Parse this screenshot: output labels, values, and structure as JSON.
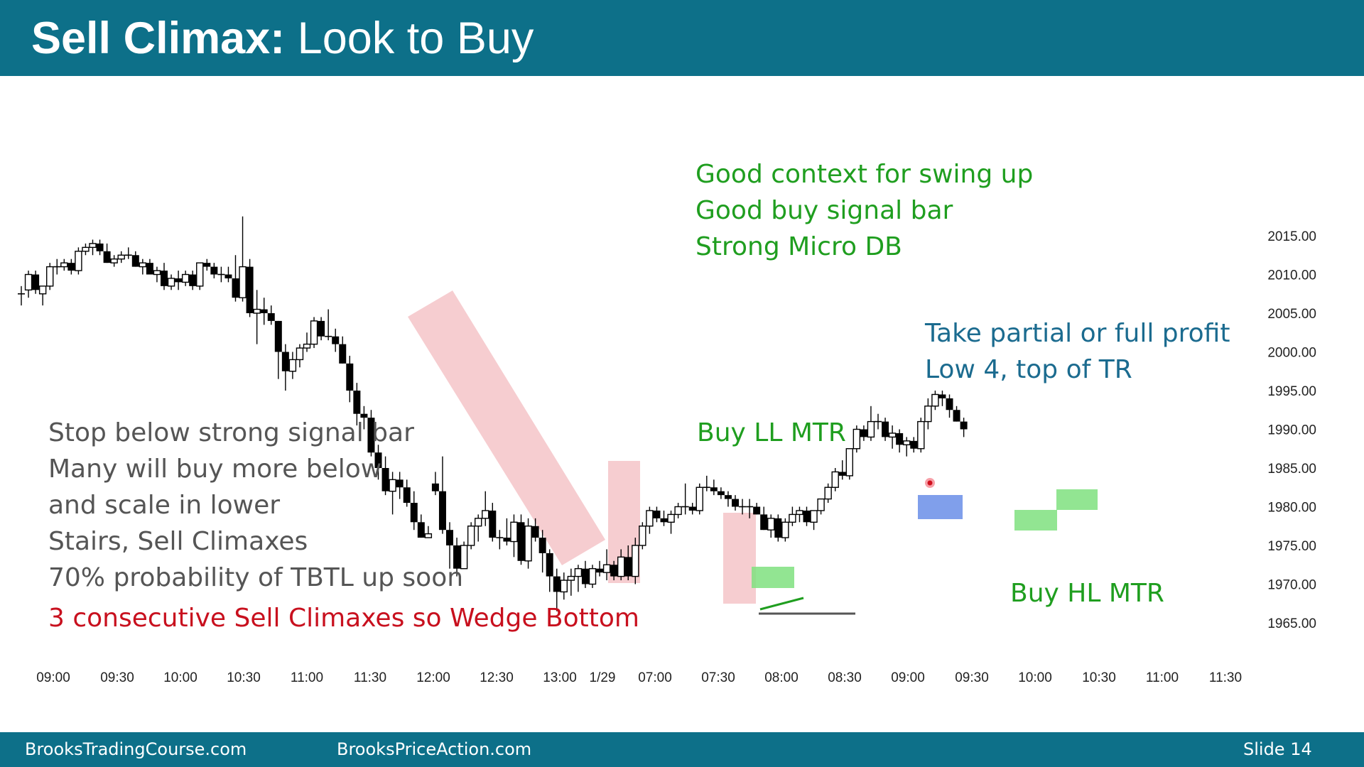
{
  "slide": {
    "title_bold": "Sell Climax:",
    "title_rest": " Look to Buy",
    "footer_left": "BrooksTradingCourse.com",
    "footer_mid": "BrooksPriceAction.com",
    "footer_right": "Slide  14"
  },
  "annotations": {
    "context": [
      "Good context for swing up",
      "Good buy signal bar",
      "Strong Micro DB"
    ],
    "profit": [
      "Take partial or full profit",
      "Low 4, top of TR"
    ],
    "left": [
      "Stop below strong signal bar",
      "Many will buy more below",
      "and scale in lower",
      "Stairs, Sell Climaxes",
      "70% probability of TBTL up soon"
    ],
    "wedge": "3 consecutive Sell Climaxes so Wedge Bottom",
    "buy_ll": "Buy LL MTR",
    "buy_hl": "Buy HL MTR"
  },
  "colors": {
    "header": "#0d7089",
    "bull_body": "#ffffff",
    "bear_body": "#000000",
    "pink_zone": "#f4c4c8",
    "green_zone": "#7fe07f",
    "blue_zone": "#6a8ee8"
  },
  "chart_data": {
    "type": "candlestick",
    "ylim": [
      1962,
      2018
    ],
    "y_ticks": [
      "2015.00",
      "2010.00",
      "2005.00",
      "2000.00",
      "1995.00",
      "1990.00",
      "1985.00",
      "1980.00",
      "1975.00",
      "1970.00",
      "1965.00"
    ],
    "x_ticks": [
      "09:00",
      "09:30",
      "10:00",
      "10:30",
      "11:00",
      "11:30",
      "12:00",
      "12:30",
      "13:00",
      "1/29",
      "07:00",
      "07:30",
      "08:00",
      "08:30",
      "09:00",
      "09:30",
      "10:00",
      "10:30",
      "11:00",
      "11:30"
    ],
    "bars_ohlc": [
      [
        2007.5,
        2008.5,
        2006,
        2007.5
      ],
      [
        2008,
        2010.5,
        2007,
        2010
      ],
      [
        2010,
        2010.5,
        2007.5,
        2008
      ],
      [
        2007.5,
        2008.5,
        2006,
        2008.5
      ],
      [
        2008.5,
        2011.5,
        2008,
        2011
      ],
      [
        2011,
        2012,
        2010,
        2011
      ],
      [
        2011,
        2012,
        2010.5,
        2011.5
      ],
      [
        2011.5,
        2012,
        2010,
        2010.5
      ],
      [
        2010.5,
        2013.5,
        2010,
        2013
      ],
      [
        2013,
        2014,
        2012.5,
        2013.5
      ],
      [
        2013.5,
        2014.5,
        2012.5,
        2014
      ],
      [
        2014,
        2014.5,
        2012.5,
        2013
      ],
      [
        2013,
        2014,
        2011.5,
        2011.5
      ],
      [
        2011.5,
        2012.5,
        2011,
        2012
      ],
      [
        2012,
        2013,
        2011.5,
        2012.5
      ],
      [
        2012.5,
        2013.5,
        2012,
        2012.5
      ],
      [
        2012.5,
        2013,
        2011,
        2011
      ],
      [
        2011,
        2012,
        2010,
        2011.5
      ],
      [
        2011.5,
        2012,
        2010,
        2010
      ],
      [
        2010,
        2011,
        2009,
        2010.5
      ],
      [
        2010.5,
        2011.5,
        2008,
        2008.5
      ],
      [
        2008.5,
        2010,
        2008,
        2009.5
      ],
      [
        2009.5,
        2010.5,
        2008,
        2009
      ],
      [
        2009,
        2010.5,
        2008.5,
        2010
      ],
      [
        2010,
        2010.5,
        2008,
        2008.5
      ],
      [
        2008.5,
        2011.5,
        2008,
        2011.5
      ],
      [
        2011.5,
        2012,
        2010.5,
        2011
      ],
      [
        2011,
        2011.5,
        2009.5,
        2010
      ],
      [
        2010,
        2011,
        2009,
        2010
      ],
      [
        2010,
        2011,
        2009,
        2009.5
      ],
      [
        2009.5,
        2012.5,
        2006.5,
        2007
      ],
      [
        2007,
        2017.5,
        2006.5,
        2011
      ],
      [
        2011,
        2012,
        2004.5,
        2005
      ],
      [
        2005,
        2008,
        2001,
        2005.5
      ],
      [
        2005.5,
        2007,
        2003.5,
        2005
      ],
      [
        2005,
        2006,
        2003.5,
        2004
      ],
      [
        2004,
        2004,
        1996.5,
        2000
      ],
      [
        2000,
        2001,
        1995,
        1997.5
      ],
      [
        1997.5,
        2000,
        1996.5,
        1999
      ],
      [
        1999,
        2001,
        1998,
        2000.5
      ],
      [
        2000.5,
        2002.5,
        2000,
        2001
      ],
      [
        2001,
        2004.5,
        2000.5,
        2004
      ],
      [
        2004,
        2004.5,
        2001.5,
        2002
      ],
      [
        2002,
        2005.5,
        2001.5,
        2002
      ],
      [
        2002,
        2003,
        2000,
        2001
      ],
      [
        2001,
        2002,
        1998.5,
        1998.5
      ],
      [
        1998.5,
        1999.5,
        1993.5,
        1995
      ],
      [
        1995,
        1996,
        1990.5,
        1992
      ],
      [
        1992,
        1993,
        1990,
        1991.5
      ],
      [
        1991.5,
        1992.5,
        1986.5,
        1987
      ],
      [
        1987,
        1988,
        1983.5,
        1985
      ],
      [
        1985,
        1986.5,
        1981.5,
        1982
      ],
      [
        1982,
        1984.5,
        1979,
        1983.5
      ],
      [
        1983.5,
        1984.5,
        1981,
        1982.5
      ],
      [
        1982.5,
        1983.5,
        1980,
        1980.5
      ],
      [
        1980.5,
        1982,
        1977,
        1978
      ],
      [
        1978,
        1979,
        1976,
        1976
      ],
      [
        1976,
        1977.5,
        1976,
        1976.5
      ],
      [
        1983,
        1984.5,
        1981.5,
        1982
      ],
      [
        1982,
        1986.5,
        1976.5,
        1977
      ],
      [
        1977,
        1978,
        1972,
        1975
      ],
      [
        1975,
        1976,
        1971,
        1972
      ],
      [
        1972,
        1975.5,
        1972,
        1975
      ],
      [
        1975,
        1978,
        1974.5,
        1977.5
      ],
      [
        1977.5,
        1979,
        1975.5,
        1978.5
      ],
      [
        1978.5,
        1982,
        1977.5,
        1979.5
      ],
      [
        1979.5,
        1980.5,
        1975.5,
        1976
      ],
      [
        1976,
        1977,
        1974.5,
        1976
      ],
      [
        1976,
        1978.5,
        1975,
        1975.5
      ],
      [
        1975.5,
        1979,
        1973.5,
        1978
      ],
      [
        1978,
        1979,
        1972.5,
        1973
      ],
      [
        1973,
        1978.5,
        1972,
        1977.5
      ],
      [
        1977.5,
        1978.5,
        1975.5,
        1976
      ],
      [
        1976,
        1977,
        1971.5,
        1974
      ],
      [
        1974,
        1974.5,
        1969,
        1971
      ],
      [
        1971,
        1972,
        1966.5,
        1969
      ],
      [
        1969,
        1971.5,
        1968,
        1970.5
      ],
      [
        1970.5,
        1972,
        1968.5,
        1971
      ],
      [
        1971,
        1972.5,
        1969,
        1972
      ],
      [
        1972,
        1973,
        1969.5,
        1970
      ],
      [
        1970,
        1972.5,
        1969.5,
        1972
      ],
      [
        1972,
        1973,
        1971,
        1971.5
      ],
      [
        1971.5,
        1974.5,
        1970.5,
        1972.5
      ],
      [
        1972.5,
        1973,
        1970.5,
        1971
      ],
      [
        1971,
        1974.5,
        1970.5,
        1973.5
      ],
      [
        1973.5,
        1975,
        1970.5,
        1971
      ],
      [
        1971,
        1976,
        1970,
        1975
      ],
      [
        1975,
        1978,
        1974.5,
        1977.5
      ],
      [
        1977.5,
        1980,
        1976.5,
        1979.5
      ],
      [
        1979.5,
        1980,
        1978,
        1978.5
      ],
      [
        1978.5,
        1979.5,
        1977.5,
        1978
      ],
      [
        1978,
        1979.5,
        1976.5,
        1979
      ],
      [
        1979,
        1980.5,
        1978.5,
        1980
      ],
      [
        1980,
        1983,
        1979,
        1980
      ],
      [
        1980,
        1980.5,
        1979,
        1979.5
      ],
      [
        1979.5,
        1983,
        1979,
        1982.5
      ],
      [
        1982.5,
        1984,
        1982,
        1982.5
      ],
      [
        1982.5,
        1983.5,
        1981.5,
        1982
      ],
      [
        1982,
        1982.5,
        1981,
        1981.5
      ],
      [
        1981.5,
        1982,
        1980,
        1981
      ],
      [
        1981,
        1981.5,
        1979.5,
        1980
      ],
      [
        1980,
        1981,
        1979,
        1980
      ],
      [
        1980,
        1981,
        1978.5,
        1980
      ],
      [
        1980,
        1980.5,
        1979,
        1979
      ],
      [
        1979,
        1980,
        1977,
        1977
      ],
      [
        1977,
        1979,
        1976,
        1978.5
      ],
      [
        1978.5,
        1979,
        1975.5,
        1976
      ],
      [
        1976,
        1978.5,
        1975.5,
        1978
      ],
      [
        1978,
        1980,
        1977.5,
        1979
      ],
      [
        1979,
        1980,
        1978,
        1979.5
      ],
      [
        1979.5,
        1980,
        1977.5,
        1978
      ],
      [
        1978,
        1979.5,
        1977,
        1979.5
      ],
      [
        1979.5,
        1981,
        1979,
        1981
      ],
      [
        1981,
        1983,
        1980.5,
        1982.5
      ],
      [
        1982.5,
        1985,
        1982,
        1984.5
      ],
      [
        1984.5,
        1986,
        1983.5,
        1984
      ],
      [
        1984,
        1987.5,
        1983.5,
        1987.5
      ],
      [
        1987.5,
        1990.5,
        1987,
        1990
      ],
      [
        1990,
        1990.5,
        1988.5,
        1989
      ],
      [
        1989,
        1993,
        1988.5,
        1991
      ],
      [
        1991,
        1992,
        1990,
        1991
      ],
      [
        1991,
        1991.5,
        1988.5,
        1989
      ],
      [
        1989,
        1990.5,
        1987.5,
        1989.5
      ],
      [
        1989.5,
        1990,
        1987,
        1988
      ],
      [
        1988,
        1989,
        1986.5,
        1988.5
      ],
      [
        1988.5,
        1989,
        1987,
        1987.5
      ],
      [
        1987.5,
        1991.5,
        1987,
        1991
      ],
      [
        1991,
        1994,
        1990,
        1993
      ],
      [
        1993,
        1995,
        1992.5,
        1994.5
      ],
      [
        1994.5,
        1995,
        1993,
        1994
      ],
      [
        1994,
        1994.5,
        1991.5,
        1992.5
      ],
      [
        1992.5,
        1993,
        1991,
        1991
      ],
      [
        1991,
        1991.5,
        1989,
        1990
      ]
    ],
    "highlight_zones": [
      {
        "kind": "pink-channel",
        "label": "sell climax 1"
      },
      {
        "kind": "pink",
        "label": "sell climax 2"
      },
      {
        "kind": "pink",
        "label": "sell climax 3"
      },
      {
        "kind": "green",
        "label": "micro double bottom"
      },
      {
        "kind": "blue",
        "label": "low 4 top of TR"
      },
      {
        "kind": "green",
        "label": "higher low 1"
      },
      {
        "kind": "green",
        "label": "higher low 2"
      }
    ],
    "marker": {
      "type": "red-dot",
      "label": "Low 4"
    }
  }
}
